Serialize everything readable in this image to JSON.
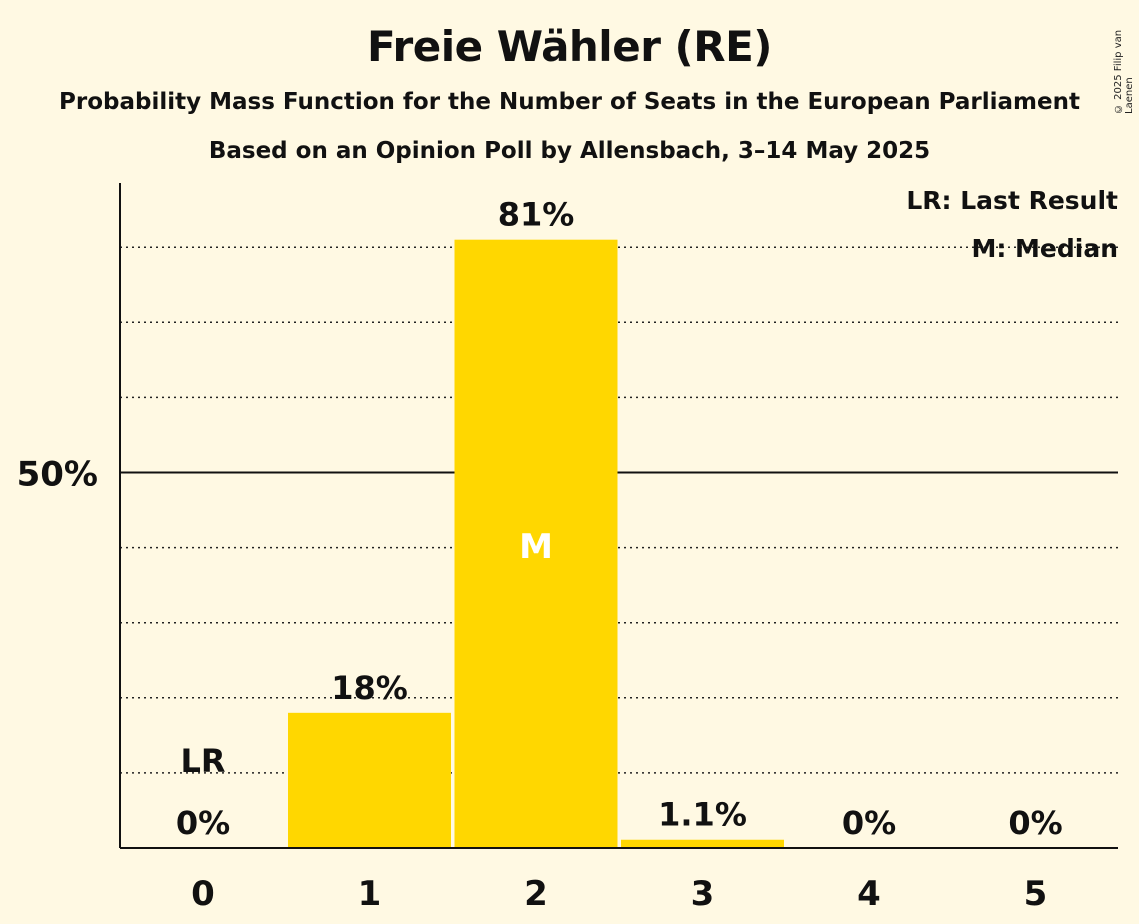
{
  "copyright": "© 2025 Filip van Laenen",
  "chart_data": {
    "type": "bar",
    "title": "Freie Wähler (RE)",
    "subtitle": "Probability Mass Function for the Number of Seats in the European Parliament",
    "subtitle2": "Based on an Opinion Poll by Allensbach, 3–14 May 2025",
    "categories": [
      "0",
      "1",
      "2",
      "3",
      "4",
      "5"
    ],
    "values": [
      0,
      18,
      81,
      1.1,
      0,
      0
    ],
    "value_labels": [
      "0%",
      "18%",
      "81%",
      "1.1%",
      "0%",
      "0%"
    ],
    "ylim": [
      0,
      88
    ],
    "y_tick_values": [
      50
    ],
    "y_tick_labels": [
      "50%"
    ],
    "minor_gridlines": [
      10,
      20,
      30,
      40,
      60,
      70,
      80
    ],
    "last_result_index": 0,
    "last_result_label": "LR",
    "median_index": 2,
    "median_label": "M",
    "legend": [
      "LR: Last Result",
      "M: Median"
    ],
    "legend_position": "top-right",
    "bar_color": "#FFD700",
    "background_color": "#FFF9E3"
  }
}
